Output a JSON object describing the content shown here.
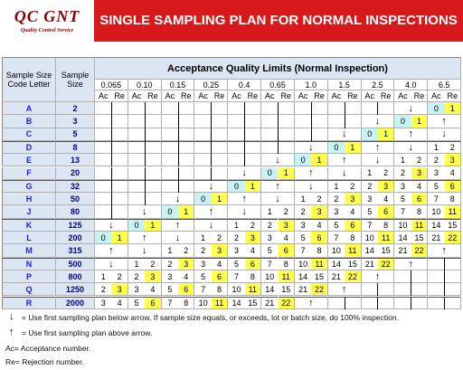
{
  "header": {
    "logo": "QC GNT",
    "logo_tagline": "Quality Control Service",
    "title": "SINGLE SAMPLING PLAN FOR NORMAL INSPECTIONS"
  },
  "table": {
    "code_letter_header": "Sample Size Code Letter",
    "sample_size_header": "Sample Size",
    "aql_header": "Acceptance Quality Limits (Normal Inspection)",
    "aql_levels": [
      "0.065",
      "0.10",
      "0.15",
      "0.25",
      "0.4",
      "0.65",
      "1.0",
      "1.5",
      "2.5",
      "4.0",
      "6.5"
    ],
    "ac_label": "Ac",
    "re_label": "Re",
    "rows": [
      {
        "code": "A",
        "size": 2,
        "cells": [
          null,
          null,
          null,
          null,
          null,
          null,
          null,
          null,
          null,
          "↓",
          [
            0,
            1
          ]
        ]
      },
      {
        "code": "B",
        "size": 3,
        "cells": [
          null,
          null,
          null,
          null,
          null,
          null,
          null,
          null,
          "↓",
          [
            0,
            1
          ],
          "↑"
        ]
      },
      {
        "code": "C",
        "size": 5,
        "cells": [
          null,
          null,
          null,
          null,
          null,
          null,
          null,
          "↓",
          [
            0,
            1
          ],
          "↑",
          "↓"
        ]
      },
      {
        "code": "D",
        "size": 8,
        "cells": [
          null,
          null,
          null,
          null,
          null,
          null,
          "↓",
          [
            0,
            1
          ],
          "↑",
          "↓",
          [
            1,
            2
          ]
        ]
      },
      {
        "code": "E",
        "size": 13,
        "cells": [
          null,
          null,
          null,
          null,
          null,
          "↓",
          [
            0,
            1
          ],
          "↑",
          "↓",
          [
            1,
            2
          ],
          [
            2,
            3
          ]
        ]
      },
      {
        "code": "F",
        "size": 20,
        "cells": [
          null,
          null,
          null,
          null,
          "↓",
          [
            0,
            1
          ],
          "↑",
          "↓",
          [
            1,
            2
          ],
          [
            2,
            3
          ],
          [
            3,
            4
          ]
        ]
      },
      {
        "code": "G",
        "size": 32,
        "cells": [
          null,
          null,
          null,
          "↓",
          [
            0,
            1
          ],
          "↑",
          "↓",
          [
            1,
            2
          ],
          [
            2,
            3
          ],
          [
            3,
            4
          ],
          [
            5,
            6
          ]
        ]
      },
      {
        "code": "H",
        "size": 50,
        "cells": [
          null,
          null,
          "↓",
          [
            0,
            1
          ],
          "↑",
          "↓",
          [
            1,
            2
          ],
          [
            2,
            3
          ],
          [
            3,
            4
          ],
          [
            5,
            6
          ],
          [
            7,
            8
          ]
        ]
      },
      {
        "code": "J",
        "size": 80,
        "cells": [
          null,
          "↓",
          [
            0,
            1
          ],
          "↑",
          "↓",
          [
            1,
            2
          ],
          [
            2,
            3
          ],
          [
            3,
            4
          ],
          [
            5,
            6
          ],
          [
            7,
            8
          ],
          [
            10,
            11
          ]
        ]
      },
      {
        "code": "K",
        "size": 125,
        "cells": [
          "↓",
          [
            0,
            1
          ],
          "↑",
          "↓",
          [
            1,
            2
          ],
          [
            2,
            3
          ],
          [
            3,
            4
          ],
          [
            5,
            6
          ],
          [
            7,
            8
          ],
          [
            10,
            11
          ],
          [
            14,
            15
          ]
        ]
      },
      {
        "code": "L",
        "size": 200,
        "cells": [
          [
            0,
            1
          ],
          "↑",
          "↓",
          [
            1,
            2
          ],
          [
            2,
            3
          ],
          [
            3,
            4
          ],
          [
            5,
            6
          ],
          [
            7,
            8
          ],
          [
            10,
            11
          ],
          [
            14,
            15
          ],
          [
            21,
            22
          ]
        ]
      },
      {
        "code": "M",
        "size": 315,
        "cells": [
          "↑",
          "↓",
          [
            1,
            2
          ],
          [
            2,
            3
          ],
          [
            3,
            4
          ],
          [
            5,
            6
          ],
          [
            7,
            8
          ],
          [
            10,
            11
          ],
          [
            14,
            15
          ],
          [
            21,
            22
          ],
          "↑"
        ]
      },
      {
        "code": "N",
        "size": 500,
        "cells": [
          "↓",
          [
            1,
            2
          ],
          [
            2,
            3
          ],
          [
            3,
            4
          ],
          [
            5,
            6
          ],
          [
            7,
            8
          ],
          [
            10,
            11
          ],
          [
            14,
            15
          ],
          [
            21,
            22
          ],
          "↑",
          null
        ]
      },
      {
        "code": "P",
        "size": 800,
        "cells": [
          [
            1,
            2
          ],
          [
            2,
            3
          ],
          [
            3,
            4
          ],
          [
            5,
            6
          ],
          [
            7,
            8
          ],
          [
            10,
            11
          ],
          [
            14,
            15
          ],
          [
            21,
            22
          ],
          "↑",
          null,
          null
        ]
      },
      {
        "code": "Q",
        "size": 1250,
        "cells": [
          [
            2,
            3
          ],
          [
            3,
            4
          ],
          [
            5,
            6
          ],
          [
            7,
            8
          ],
          [
            10,
            11
          ],
          [
            14,
            15
          ],
          [
            21,
            22
          ],
          "↑",
          null,
          null,
          null
        ]
      },
      {
        "code": "R",
        "size": 2000,
        "cells": [
          [
            3,
            4
          ],
          [
            5,
            6
          ],
          [
            7,
            8
          ],
          [
            10,
            11
          ],
          [
            14,
            15
          ],
          [
            21,
            22
          ],
          "↑",
          null,
          null,
          null,
          null
        ]
      }
    ]
  },
  "notes": [
    {
      "symbol": "↓",
      "text": "= Use first sampling plan below arrow. If sample size equals, or exceeds, lot or batch size, do 100% inspection."
    },
    {
      "symbol": "↑",
      "text": "= Use first sampling plan above arrow."
    },
    {
      "text": "Ac= Acceptance number."
    },
    {
      "text": "Re= Rejection number."
    }
  ]
}
